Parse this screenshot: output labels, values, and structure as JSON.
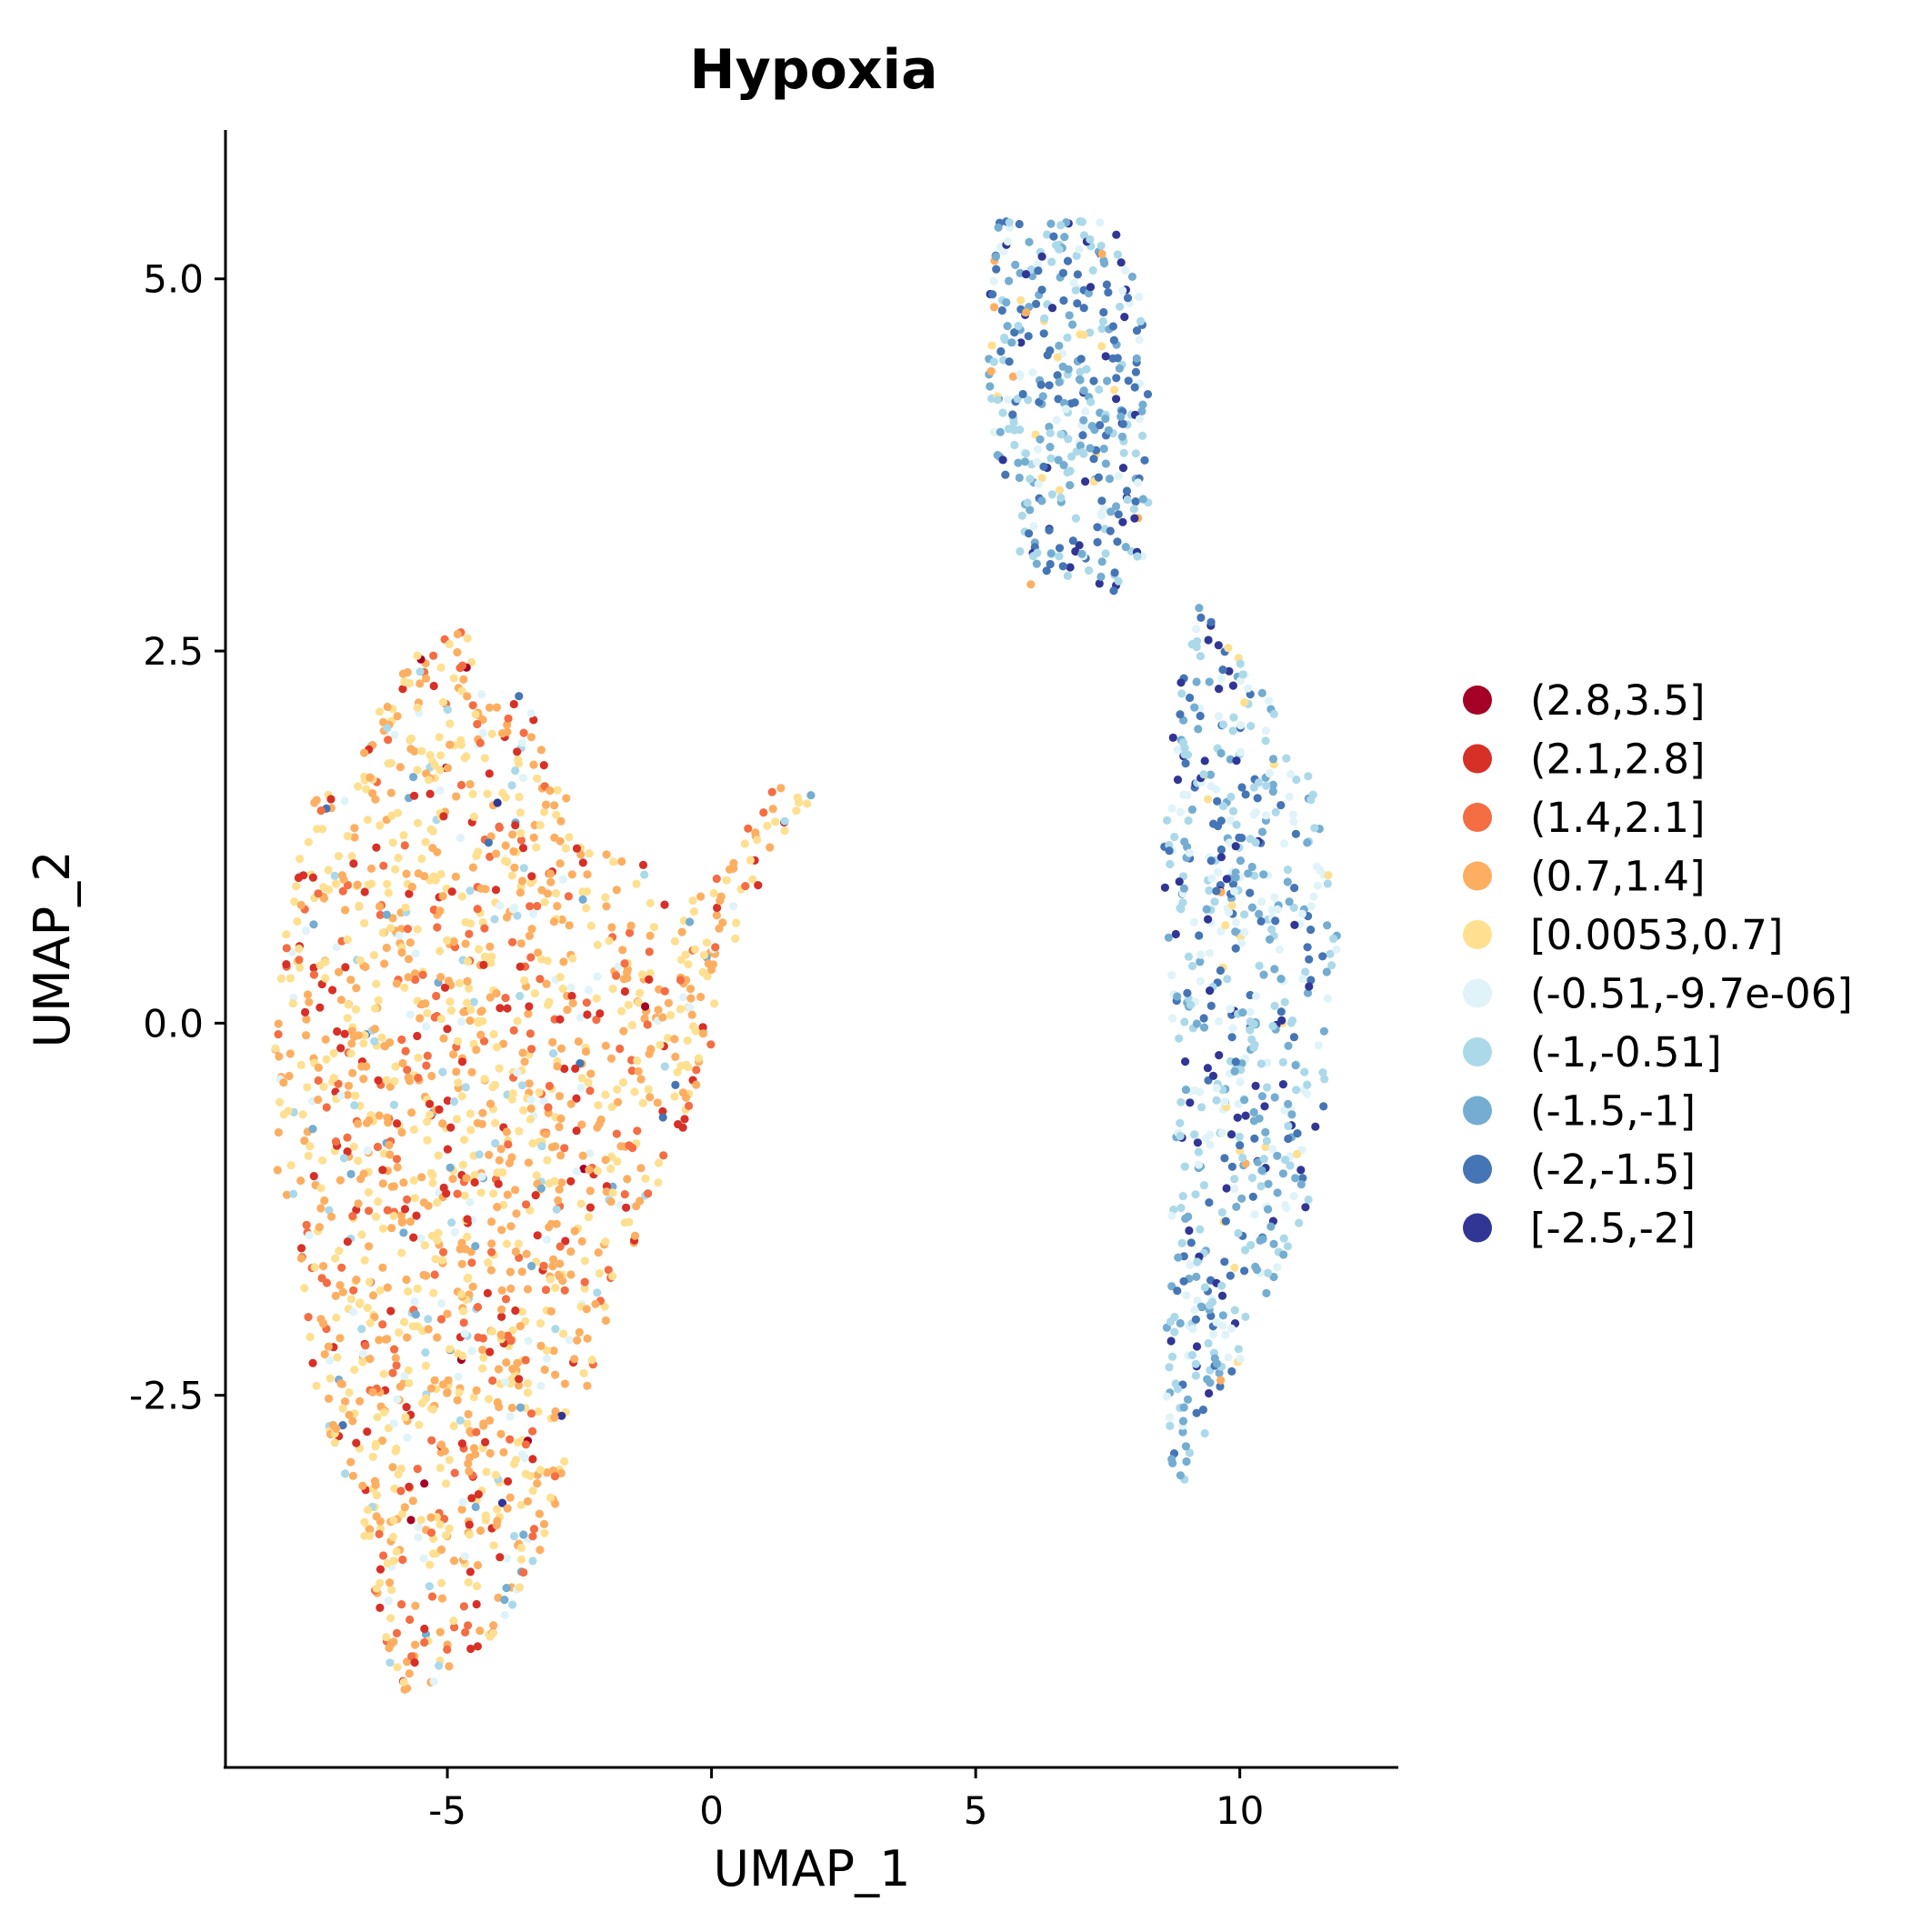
{
  "chart_data": {
    "type": "scatter",
    "title": "Hypoxia",
    "xlabel": "UMAP_1",
    "ylabel": "UMAP_2",
    "xlim": [
      -9.2,
      13.0
    ],
    "ylim": [
      -5.0,
      6.0
    ],
    "x_ticks": [
      {
        "value": -5,
        "label": "-5"
      },
      {
        "value": 0,
        "label": "0"
      },
      {
        "value": 5,
        "label": "5"
      },
      {
        "value": 10,
        "label": "10"
      }
    ],
    "y_ticks": [
      {
        "value": 5.0,
        "label": "5.0"
      },
      {
        "value": 2.5,
        "label": "2.5"
      },
      {
        "value": 0.0,
        "label": "0.0"
      },
      {
        "value": -2.5,
        "label": "-2.5"
      }
    ],
    "grid": false,
    "legend_position": "right",
    "legend": [
      {
        "label": "(2.8,3.5]",
        "color": "#A50026"
      },
      {
        "label": "(2.1,2.8]",
        "color": "#D73027"
      },
      {
        "label": "(1.4,2.1]",
        "color": "#F46D43"
      },
      {
        "label": "(0.7,1.4]",
        "color": "#FDAE61"
      },
      {
        "label": "[0.0053,0.7]",
        "color": "#FEE090"
      },
      {
        "label": "(-0.51,-9.7e-06]",
        "color": "#E0F3F8"
      },
      {
        "label": "(-1,-0.51]",
        "color": "#ABD9E9"
      },
      {
        "label": "(-1.5,-1]",
        "color": "#74ADD1"
      },
      {
        "label": "(-2,-1.5]",
        "color": "#4575B4"
      },
      {
        "label": "[-2.5,-2]",
        "color": "#313695"
      }
    ],
    "clusters": [
      {
        "name": "left",
        "outline": [
          [
            -6.0,
            -4.5
          ],
          [
            -5.0,
            -4.4
          ],
          [
            -4.0,
            -4.1
          ],
          [
            -3.0,
            -3.4
          ],
          [
            -2.4,
            -2.6
          ],
          [
            -2.0,
            -2.0
          ],
          [
            -1.5,
            -1.6
          ],
          [
            -1.2,
            -1.2
          ],
          [
            -0.6,
            -0.8
          ],
          [
            0.0,
            -0.2
          ],
          [
            0.3,
            0.3
          ],
          [
            0.8,
            0.8
          ],
          [
            1.4,
            1.3
          ],
          [
            2.2,
            1.5
          ],
          [
            1.2,
            1.6
          ],
          [
            0.5,
            1.2
          ],
          [
            -0.3,
            0.9
          ],
          [
            -1.5,
            1.1
          ],
          [
            -2.5,
            1.3
          ],
          [
            -3.2,
            1.9
          ],
          [
            -3.3,
            2.2
          ],
          [
            -4.2,
            2.2
          ],
          [
            -4.7,
            2.7
          ],
          [
            -5.7,
            2.5
          ],
          [
            -6.2,
            2.2
          ],
          [
            -6.8,
            1.6
          ],
          [
            -7.6,
            1.5
          ],
          [
            -8.1,
            0.5
          ],
          [
            -8.3,
            -0.3
          ],
          [
            -8.2,
            -1.1
          ],
          [
            -7.8,
            -1.5
          ],
          [
            -7.7,
            -2.2
          ],
          [
            -7.1,
            -2.9
          ],
          [
            -6.6,
            -3.4
          ],
          [
            -6.3,
            -4.0
          ]
        ],
        "palette_weights": [
          0.006,
          0.08,
          0.12,
          0.33,
          0.34,
          0.06,
          0.04,
          0.015,
          0.006,
          0.003
        ],
        "count": 1750
      },
      {
        "name": "upper-right",
        "outline": [
          [
            5.4,
            5.4
          ],
          [
            6.6,
            5.4
          ],
          [
            7.6,
            5.4
          ],
          [
            8.1,
            4.9
          ],
          [
            8.3,
            4.2
          ],
          [
            8.3,
            3.7
          ],
          [
            8.2,
            3.1
          ],
          [
            7.6,
            2.9
          ],
          [
            6.7,
            3.0
          ],
          [
            6.0,
            2.8
          ],
          [
            5.7,
            3.4
          ],
          [
            5.3,
            3.8
          ],
          [
            5.2,
            4.6
          ]
        ],
        "palette_weights": [
          0.0,
          0.0,
          0.0,
          0.02,
          0.04,
          0.15,
          0.24,
          0.27,
          0.18,
          0.1
        ],
        "count": 380
      },
      {
        "name": "lower-right",
        "outline": [
          [
            9.2,
            2.8
          ],
          [
            10.0,
            2.5
          ],
          [
            10.7,
            2.1
          ],
          [
            11.3,
            1.7
          ],
          [
            11.9,
            0.6
          ],
          [
            11.8,
            -0.2
          ],
          [
            11.3,
            -1.2
          ],
          [
            10.6,
            -1.8
          ],
          [
            10.0,
            -2.3
          ],
          [
            9.3,
            -2.8
          ],
          [
            8.8,
            -3.2
          ],
          [
            8.5,
            -2.5
          ],
          [
            8.6,
            -1.7
          ],
          [
            8.8,
            -0.8
          ],
          [
            8.7,
            0.2
          ],
          [
            8.5,
            1.2
          ],
          [
            8.8,
            2.2
          ]
        ],
        "palette_weights": [
          0.0,
          0.0,
          0.0,
          0.01,
          0.03,
          0.18,
          0.26,
          0.25,
          0.17,
          0.1
        ],
        "count": 620
      }
    ]
  }
}
